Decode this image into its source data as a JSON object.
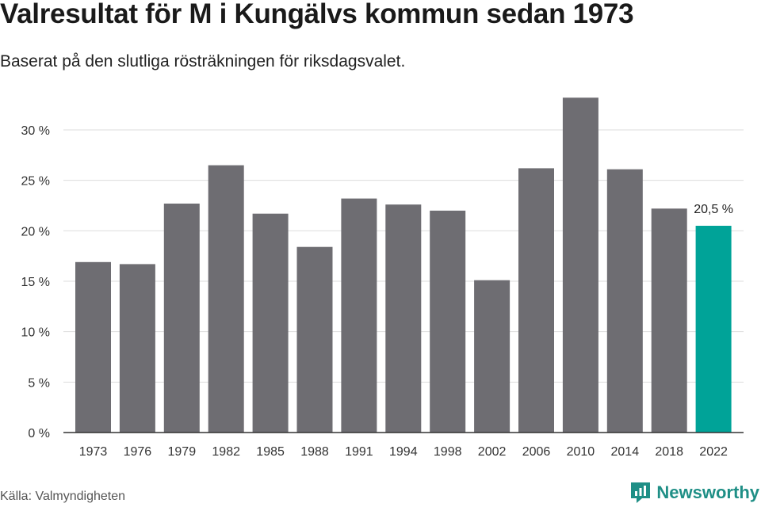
{
  "header": {
    "title": "Valresultat för M i Kungälvs kommun sedan 1973",
    "subtitle": "Baserat på den slutliga rösträkningen för riksdagsvalet."
  },
  "footer": {
    "source": "Källa: Valmyndigheten",
    "brand": "Newsworthy"
  },
  "colors": {
    "bar": "#6e6d72",
    "highlight": "#00a398",
    "grid": "#dddddd",
    "axis": "#333333",
    "brand": "#1f8f86"
  },
  "chart_data": {
    "type": "bar",
    "categories": [
      "1973",
      "1976",
      "1979",
      "1982",
      "1985",
      "1988",
      "1991",
      "1994",
      "1998",
      "2002",
      "2006",
      "2010",
      "2014",
      "2018",
      "2022"
    ],
    "values": [
      16.9,
      16.7,
      22.7,
      26.5,
      21.7,
      18.4,
      23.2,
      22.6,
      22.0,
      15.1,
      26.2,
      33.2,
      26.1,
      22.2,
      20.5
    ],
    "ylim": [
      0,
      33.5
    ],
    "yticks": [
      0,
      5,
      10,
      15,
      20,
      25,
      30
    ],
    "ytick_labels": [
      "0 %",
      "5 %",
      "10 %",
      "15 %",
      "20 %",
      "25 %",
      "30 %"
    ],
    "highlight_index": 14,
    "highlight_label": "20,5 %",
    "grid": true
  }
}
